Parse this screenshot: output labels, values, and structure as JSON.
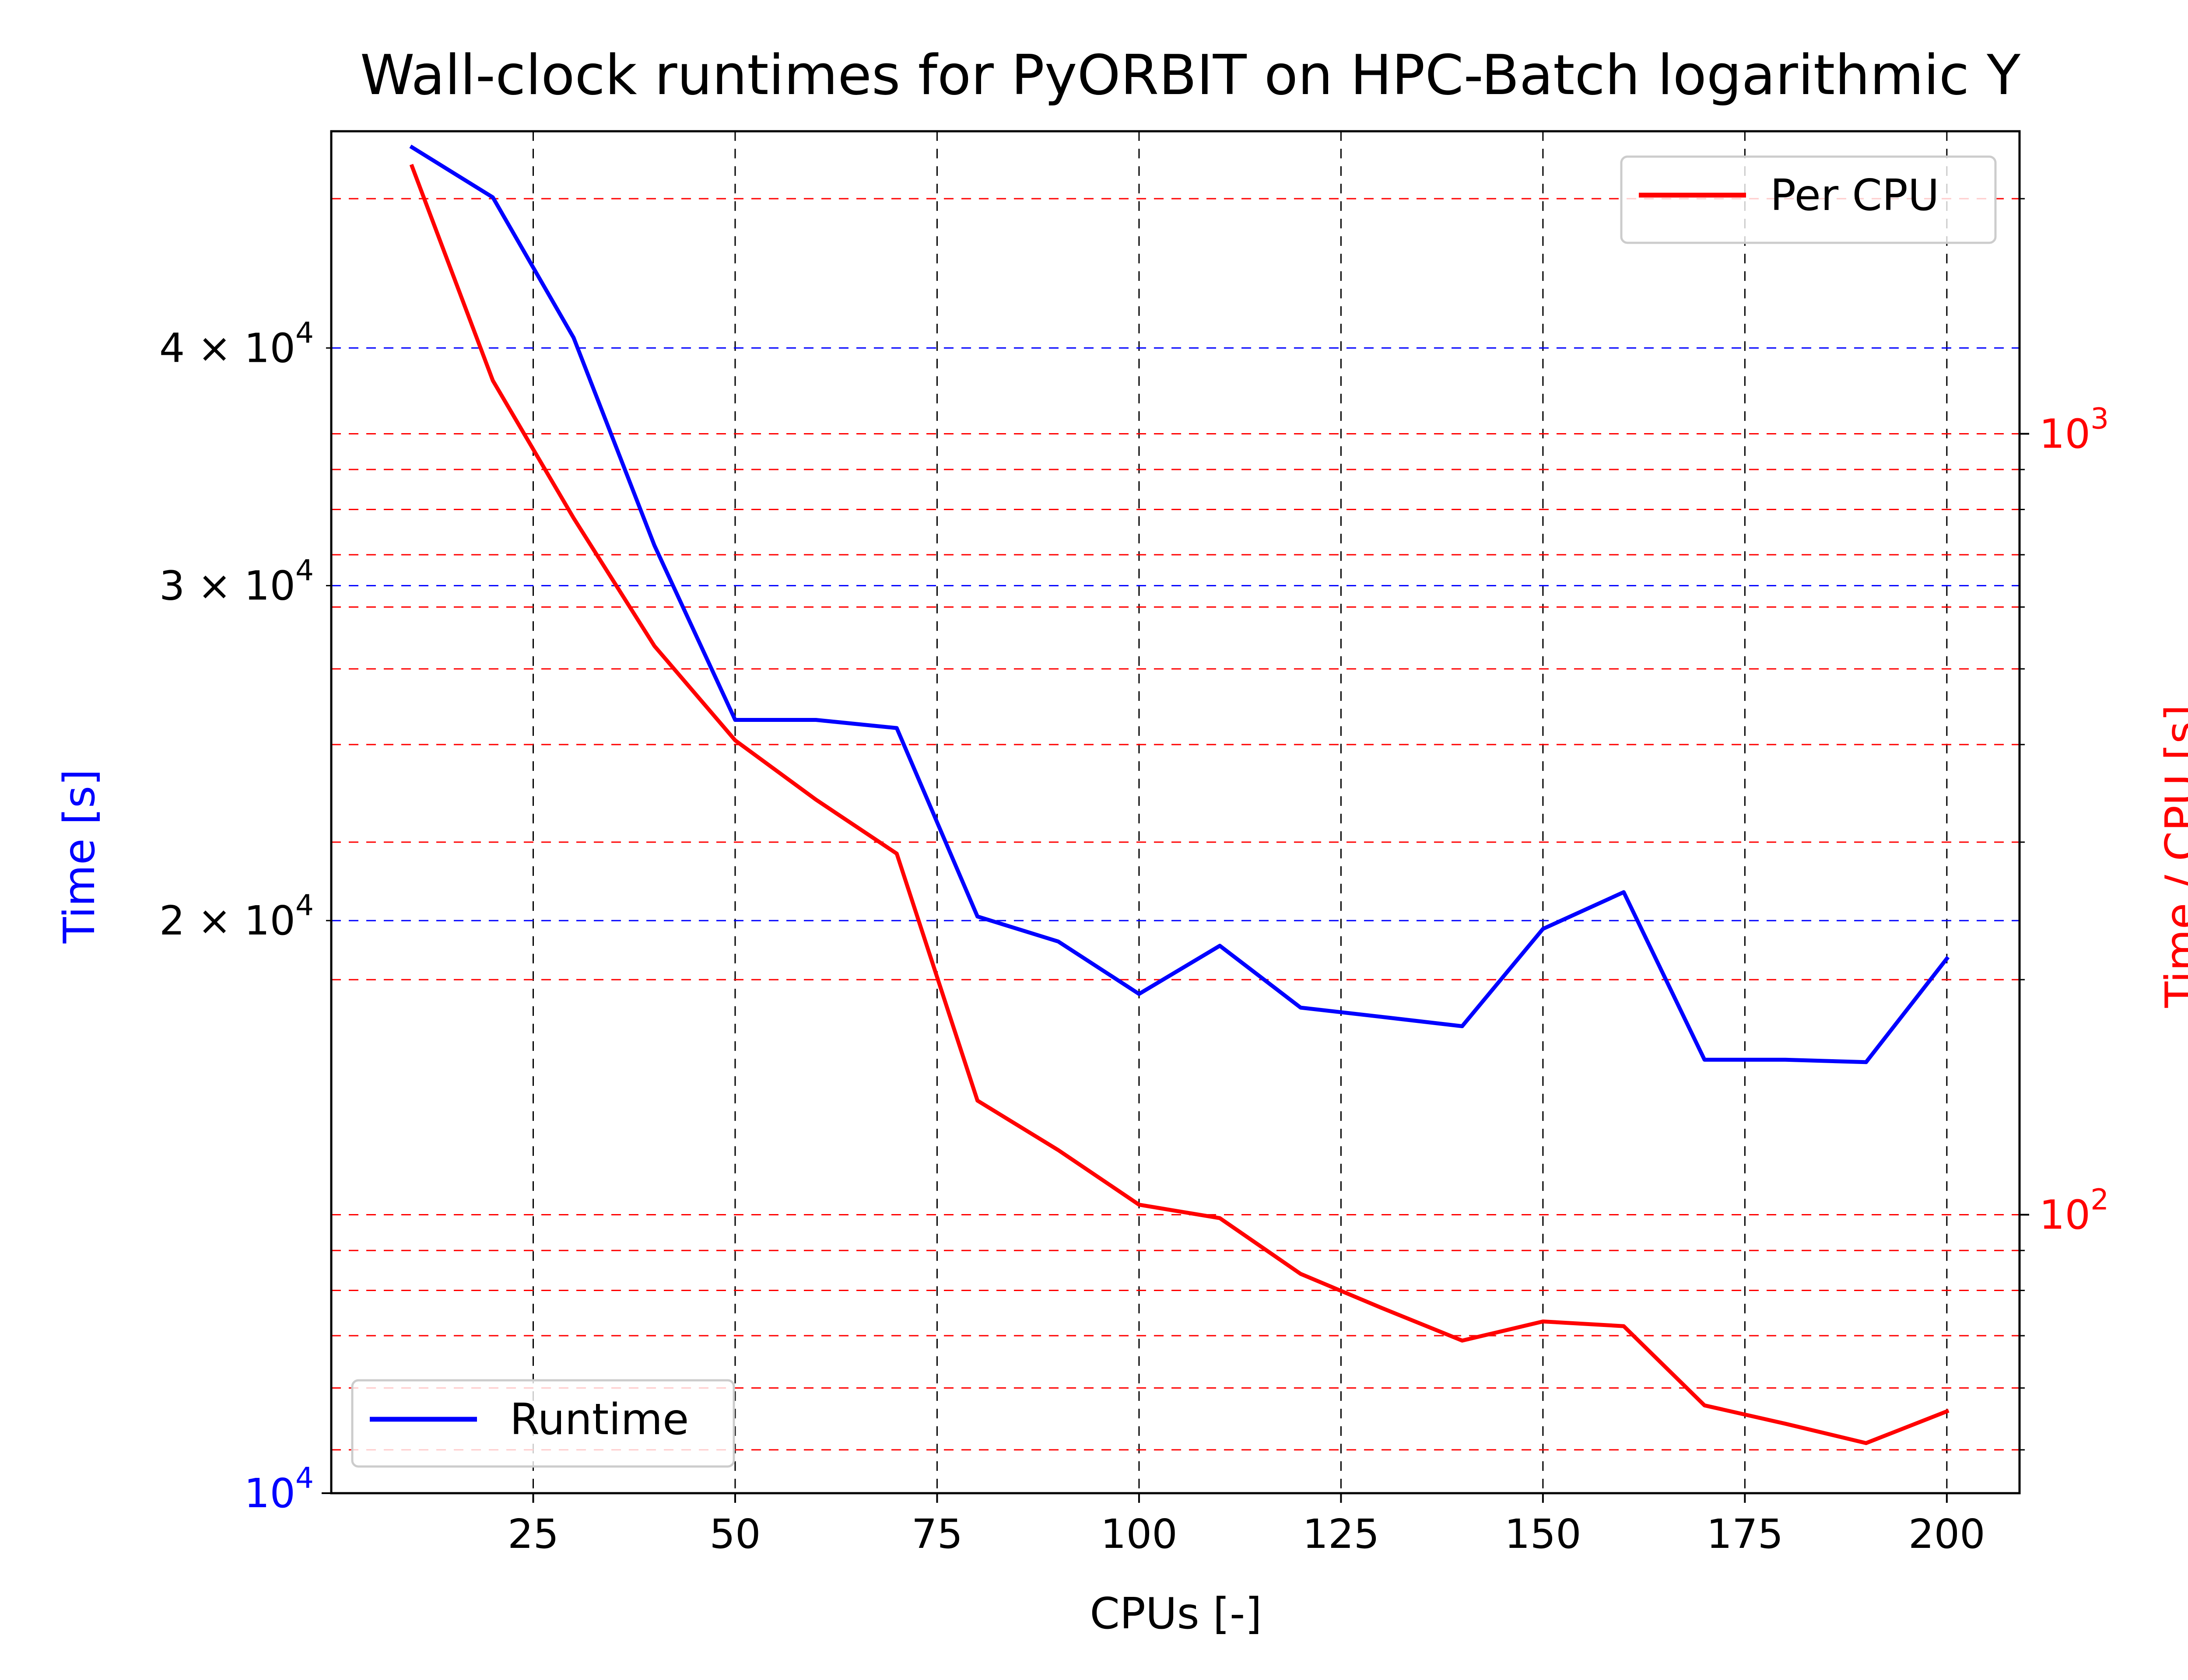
{
  "chart_data": {
    "type": "line",
    "title": "Wall-clock runtimes for PyORBIT on HPC-Batch logarithmic Y",
    "xlabel": "CPUs [-]",
    "xlim": [
      0,
      209
    ],
    "x_ticks": [
      25,
      50,
      75,
      100,
      125,
      150,
      175,
      200
    ],
    "x_tick_labels": [
      "25",
      "50",
      "75",
      "100",
      "125",
      "150",
      "175",
      "200"
    ],
    "x": [
      10,
      20,
      30,
      40,
      50,
      60,
      70,
      80,
      90,
      100,
      110,
      120,
      130,
      140,
      150,
      160,
      170,
      180,
      190,
      200
    ],
    "grid": true,
    "left_axis": {
      "label": "Time [s]",
      "color": "#0000ff",
      "scale": "log",
      "ylim": [
        10000,
        52000
      ],
      "major_ticks": [
        10000
      ],
      "major_tick_labels": [
        {
          "base": "10",
          "exp": "4"
        }
      ],
      "minor_ticks": [
        20000,
        30000,
        40000
      ],
      "minor_tick_labels": [
        {
          "mant": "2",
          "base": "10",
          "exp": "4"
        },
        {
          "mant": "3",
          "base": "10",
          "exp": "4"
        },
        {
          "mant": "4",
          "base": "10",
          "exp": "4"
        }
      ],
      "grid_color": "#0000ff"
    },
    "right_axis": {
      "label": "Time / CPU [s]",
      "color": "#ff0000",
      "scale": "log",
      "ylim": [
        44,
        2440
      ],
      "major_ticks": [
        100,
        1000
      ],
      "major_tick_labels": [
        {
          "base": "10",
          "exp": "2"
        },
        {
          "base": "10",
          "exp": "3"
        }
      ],
      "minor_ticks": [
        50,
        60,
        70,
        80,
        90,
        200,
        300,
        400,
        500,
        600,
        700,
        800,
        900,
        2000
      ],
      "grid_color": "#ff0000"
    },
    "series": [
      {
        "name": "Runtime",
        "axis": "left",
        "color": "#0000ff",
        "values": [
          51000,
          48000,
          40500,
          31500,
          25500,
          25500,
          25250,
          20100,
          19500,
          18300,
          19400,
          18000,
          17800,
          17600,
          19800,
          20700,
          16900,
          16900,
          16850,
          19100
        ]
      },
      {
        "name": "Per CPU",
        "axis": "right",
        "color": "#ff0000",
        "values": [
          2200,
          1170,
          780,
          535,
          405,
          340,
          290,
          140,
          121,
          103,
          99,
          84,
          76,
          69,
          73,
          72,
          57,
          54,
          51,
          56
        ]
      }
    ],
    "legends": [
      {
        "series": "Per CPU",
        "position": "upper right"
      },
      {
        "series": "Runtime",
        "position": "lower left"
      }
    ]
  }
}
